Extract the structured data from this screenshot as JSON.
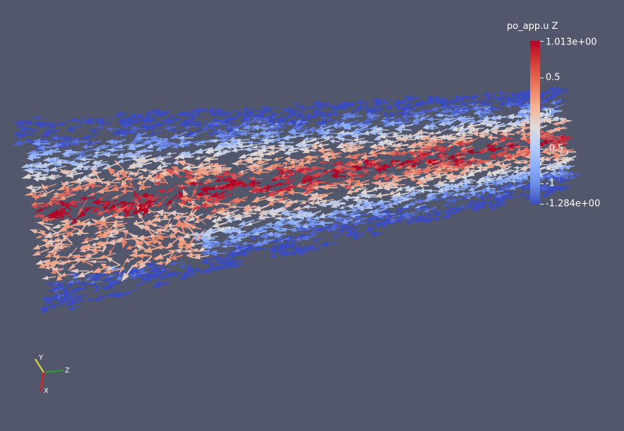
{
  "colorbar": {
    "title": "po_app.u Z",
    "max_label": "1.013e+00",
    "min_label": "-1.284e+00",
    "range": [
      -1.284,
      1.013
    ],
    "ticks": [
      {
        "value": 1.013,
        "label": "1.013e+00"
      },
      {
        "value": 0.5,
        "label": "0.5"
      },
      {
        "value": 0.0,
        "label": "0"
      },
      {
        "value": -0.5,
        "label": "-0.5"
      },
      {
        "value": -1.0,
        "label": "-1"
      },
      {
        "value": -1.284,
        "label": "-1.284e+00"
      }
    ],
    "colors": [
      "#3b4cc0",
      "#8db0fe",
      "#dddcdc",
      "#f49a7b",
      "#b40426"
    ]
  },
  "axes": {
    "x_label": "X",
    "y_label": "Y",
    "z_label": "Z",
    "x_color": "#d62728",
    "y_color": "#e8e63a",
    "z_color": "#2ca02c"
  },
  "background_color": "#52576b",
  "glyphs": {
    "type": "arrow",
    "colored_by": "po_app.u Z"
  }
}
